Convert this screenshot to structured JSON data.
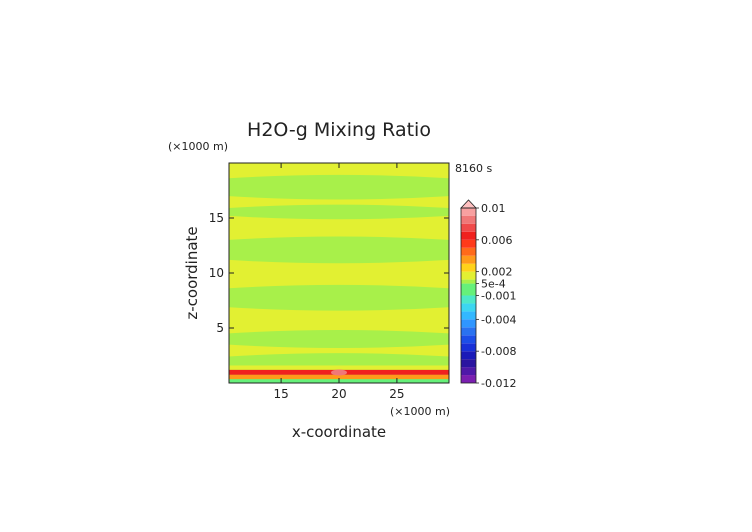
{
  "chart_data": {
    "type": "heatmap",
    "title": "H2O-g Mixing Ratio",
    "time_label": "8160 s",
    "xlabel": "x-coordinate",
    "ylabel": "z-coordinate",
    "x_unit": "(×1000 m)",
    "y_unit": "(×1000 m)",
    "xlim": [
      10.5,
      29.5
    ],
    "ylim": [
      0,
      20
    ],
    "xticks": [
      15,
      20,
      25
    ],
    "yticks": [
      5,
      10,
      15
    ],
    "colorbar": {
      "levels": [
        -0.012,
        -0.011,
        -0.01,
        -0.009,
        -0.008,
        -0.007,
        -0.006,
        -0.005,
        -0.004,
        -0.003,
        -0.002,
        -0.001,
        0.0005,
        0.001,
        0.002,
        0.003,
        0.004,
        0.005,
        0.006,
        0.007,
        0.008,
        0.009,
        0.01
      ],
      "colors": [
        "#7a1fb0",
        "#4e19a8",
        "#2a14a0",
        "#1a1ab8",
        "#1830d8",
        "#1c4ee8",
        "#2a72f0",
        "#2f96ff",
        "#33b8ff",
        "#3cd6f0",
        "#4de8c8",
        "#66f07a",
        "#a8f04a",
        "#e2f032",
        "#ffd21a",
        "#ff9a1a",
        "#ff6a1a",
        "#ff3a1a",
        "#f0201e",
        "#f04a4a",
        "#f07878",
        "#f8a0a0",
        "#ffc0c0"
      ],
      "tick_labels": [
        "0.01",
        "0.006",
        "0.002",
        "5e-4",
        "-0.001",
        "-0.004",
        "-0.008",
        "-0.012"
      ],
      "tick_values": [
        0.01,
        0.006,
        0.002,
        0.0005,
        -0.001,
        -0.004,
        -0.008,
        -0.012
      ],
      "extend": "max"
    },
    "field": {
      "background_value": 0.00075,
      "background_color": "#a8f04a",
      "bands": [
        {
          "z_min": 0.0,
          "z_max": 0.35,
          "value": 0.0,
          "color": "#66f07a"
        },
        {
          "z_min": 0.35,
          "z_max": 0.75,
          "value": 0.004,
          "color": "#ff9a1a"
        },
        {
          "z_min": 0.75,
          "z_max": 1.2,
          "value": 0.0065,
          "color": "#f0201e"
        },
        {
          "z_min": 1.2,
          "z_max": 1.6,
          "value": 0.0015,
          "color": "#e2f032"
        },
        {
          "z_min": 1.6,
          "z_max": 2.4,
          "value": 0.00075,
          "color": "#a8f04a"
        },
        {
          "z_min": 2.4,
          "z_max": 3.5,
          "value": 0.0015,
          "color": "#e2f032"
        },
        {
          "z_min": 3.5,
          "z_max": 4.5,
          "value": 0.00075,
          "color": "#a8f04a"
        },
        {
          "z_min": 4.5,
          "z_max": 6.9,
          "value": 0.0015,
          "color": "#e2f032"
        },
        {
          "z_min": 6.9,
          "z_max": 8.6,
          "value": 0.00075,
          "color": "#a8f04a"
        },
        {
          "z_min": 8.6,
          "z_max": 11.2,
          "value": 0.0015,
          "color": "#e2f032"
        },
        {
          "z_min": 11.2,
          "z_max": 13.0,
          "value": 0.00075,
          "color": "#a8f04a"
        },
        {
          "z_min": 13.0,
          "z_max": 15.2,
          "value": 0.0015,
          "color": "#e2f032"
        },
        {
          "z_min": 15.2,
          "z_max": 15.9,
          "value": 0.00075,
          "color": "#a8f04a"
        },
        {
          "z_min": 15.9,
          "z_max": 17.0,
          "value": 0.0015,
          "color": "#e2f032"
        },
        {
          "z_min": 17.0,
          "z_max": 18.6,
          "value": 0.00075,
          "color": "#a8f04a"
        },
        {
          "z_min": 18.6,
          "z_max": 20.0,
          "value": 0.0015,
          "color": "#e2f032"
        }
      ],
      "hot_spot": {
        "x": 20,
        "z": 0.95,
        "value": 0.009,
        "color": "#f07878"
      }
    }
  }
}
